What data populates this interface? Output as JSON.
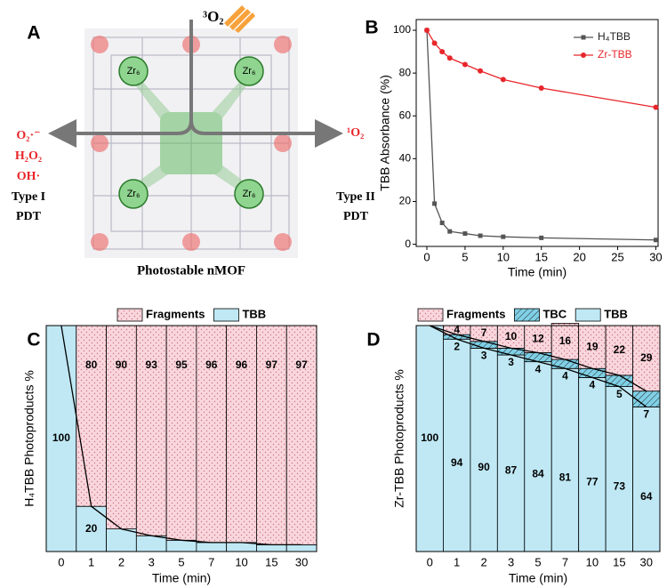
{
  "diagram": {
    "panel": "A",
    "top_label": "³O₂",
    "right_label": "¹O₂",
    "left_species": [
      "O₂·⁻",
      "H₂O₂",
      "OH·"
    ],
    "left_type": [
      "Type I",
      "PDT"
    ],
    "right_type": [
      "Type II",
      "PDT"
    ],
    "metal_label": "Zr₆",
    "caption": "Photostable nMOF"
  },
  "chart_data": [
    {
      "type": "line",
      "panel": "B",
      "x": [
        0,
        1,
        2,
        3,
        5,
        7,
        10,
        15,
        30
      ],
      "series": [
        {
          "name": "H₄TBB",
          "color": "#555555",
          "marker": "square",
          "values": [
            100,
            19,
            10,
            6,
            5,
            4,
            3.5,
            3,
            2
          ]
        },
        {
          "name": "Zr-TBB",
          "color": "#e8262b",
          "marker": "circle",
          "values": [
            100,
            94,
            90,
            87,
            84,
            81,
            77,
            73,
            64
          ]
        }
      ],
      "xlabel": "Time (min)",
      "ylabel": "TBB Absorbance (%)",
      "xlim": [
        -1.4,
        30.3
      ],
      "xticks": [
        0,
        5,
        10,
        15,
        20,
        25,
        30
      ],
      "ylim": [
        -1,
        105
      ],
      "yticks": [
        0,
        20,
        40,
        60,
        80,
        100
      ],
      "legend": "upper right"
    },
    {
      "type": "bar",
      "stacked": true,
      "panel": "C",
      "categories": [
        "0",
        "1",
        "2",
        "3",
        "5",
        "7",
        "10",
        "15",
        "30"
      ],
      "series": [
        {
          "name": "TBB",
          "color": "#bfe8f4",
          "pattern": "none",
          "values": [
            100,
            20,
            10,
            7,
            5,
            4,
            4,
            3,
            3
          ]
        },
        {
          "name": "Fragments",
          "color": "#f9d6de",
          "pattern": "dots",
          "values": [
            null,
            80,
            90,
            93,
            95,
            96,
            96,
            97,
            97
          ]
        }
      ],
      "xlabel": "Time (min)",
      "ylabel": "H₄TBB Photoproducts %",
      "ylim": [
        0,
        100
      ],
      "legend": "top"
    },
    {
      "type": "bar",
      "stacked": true,
      "panel": "D",
      "categories": [
        "0",
        "1",
        "2",
        "3",
        "5",
        "7",
        "10",
        "15",
        "30"
      ],
      "series": [
        {
          "name": "TBB",
          "color": "#bfe8f4",
          "pattern": "none",
          "values": [
            100,
            94,
            90,
            87,
            84,
            81,
            77,
            73,
            64
          ]
        },
        {
          "name": "TBC",
          "color": "#7fd0e6",
          "pattern": "hatch",
          "values": [
            null,
            2,
            3,
            3,
            4,
            4,
            4,
            5,
            7
          ]
        },
        {
          "name": "Fragments",
          "color": "#f9d6de",
          "pattern": "dots",
          "values": [
            null,
            4,
            7,
            10,
            12,
            16,
            19,
            22,
            29
          ]
        }
      ],
      "xlabel": "Time (min)",
      "ylabel": "Zr-TBB Photoproducts %",
      "ylim": [
        0,
        100
      ],
      "legend": "top"
    }
  ]
}
